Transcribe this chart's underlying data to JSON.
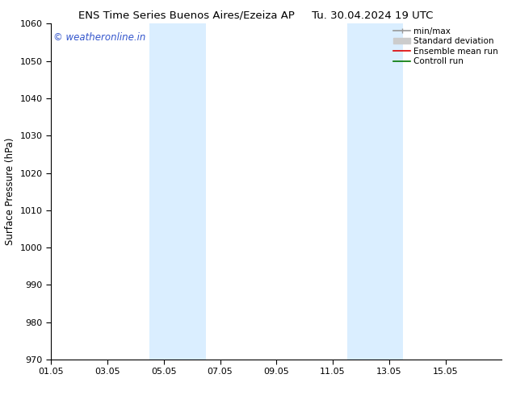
{
  "title_left": "ENS Time Series Buenos Aires/Ezeiza AP",
  "title_right": "Tu. 30.04.2024 19 UTC",
  "ylabel": "Surface Pressure (hPa)",
  "xlim": [
    0,
    16
  ],
  "ylim": [
    970,
    1060
  ],
  "yticks": [
    970,
    980,
    990,
    1000,
    1010,
    1020,
    1030,
    1040,
    1050,
    1060
  ],
  "xtick_labels": [
    "01.05",
    "03.05",
    "05.05",
    "07.05",
    "09.05",
    "11.05",
    "13.05",
    "15.05"
  ],
  "xtick_positions": [
    0,
    2,
    4,
    6,
    8,
    10,
    12,
    14
  ],
  "shade_bands": [
    {
      "xmin": 3.5,
      "xmax": 5.5
    },
    {
      "xmin": 10.5,
      "xmax": 12.5
    }
  ],
  "shade_color": "#daeeff",
  "background_color": "#ffffff",
  "watermark_text": "© weatheronline.in",
  "watermark_color": "#3355cc",
  "legend_entries": [
    {
      "label": "min/max",
      "color": "#999999",
      "lw": 1.2
    },
    {
      "label": "Standard deviation",
      "color": "#cccccc",
      "lw": 8
    },
    {
      "label": "Ensemble mean run",
      "color": "#dd0000",
      "lw": 1.2
    },
    {
      "label": "Controll run",
      "color": "#007700",
      "lw": 1.2
    }
  ],
  "title_fontsize": 9.5,
  "tick_fontsize": 8,
  "ylabel_fontsize": 8.5,
  "watermark_fontsize": 8.5,
  "legend_fontsize": 7.5
}
